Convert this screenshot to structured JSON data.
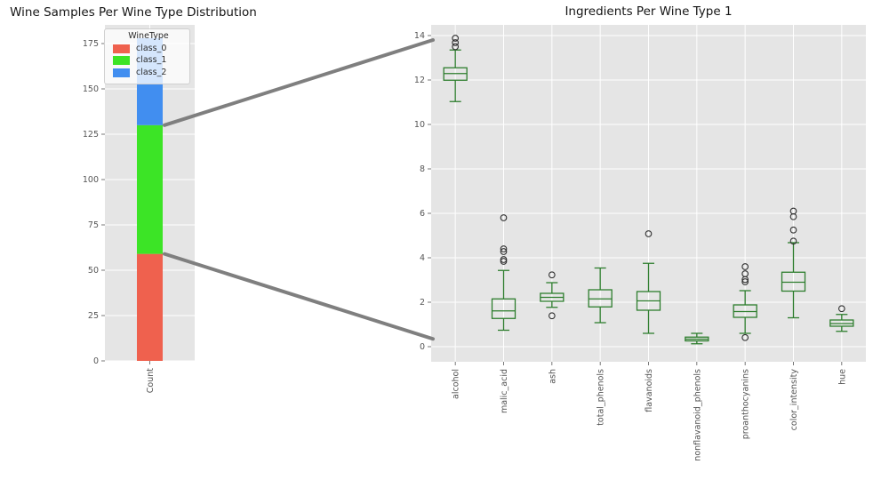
{
  "figure": {
    "background": "#ffffff",
    "axes_background": "#e5e5e5",
    "grid_color": "#ffffff",
    "tick_label_color": "#555555",
    "title_color": "#151515",
    "connector_color": "#7f7f7f",
    "flier_color": "#2f2f2f"
  },
  "chart_data": [
    {
      "type": "bar",
      "title": "Wine Samples Per Wine Type Distribution",
      "stacked": true,
      "categories": [
        "Count"
      ],
      "legend_title": "WineType",
      "legend_position": "upper center",
      "series": [
        {
          "name": "class_0",
          "color": "#ef614e",
          "values": [
            59
          ]
        },
        {
          "name": "class_1",
          "color": "#3ce426",
          "values": [
            71
          ]
        },
        {
          "name": "class_2",
          "color": "#418ef0",
          "values": [
            48
          ]
        }
      ],
      "total": 178,
      "ylim": [
        0,
        185.3
      ],
      "yticks": [
        0,
        25,
        50,
        75,
        100,
        125,
        150,
        175
      ],
      "grid": true
    },
    {
      "type": "boxplot",
      "title": "Ingredients Per Wine Type 1",
      "box_color": "#2d7d2d",
      "ylim": [
        -0.68,
        14.48
      ],
      "yticks": [
        0,
        2,
        4,
        6,
        8,
        10,
        12,
        14
      ],
      "grid": true,
      "categories": [
        "alcohol",
        "malic_acid",
        "ash",
        "total_phenols",
        "flavanoids",
        "nonflavanoid_phenols",
        "proanthocyanins",
        "color_intensity",
        "hue"
      ],
      "boxes": [
        {
          "label": "alcohol",
          "whislo": 11.03,
          "q1": 11.99,
          "med": 12.29,
          "q3": 12.55,
          "whishi": 13.35,
          "fliers": [
            13.5,
            13.68,
            13.88
          ]
        },
        {
          "label": "malic_acid",
          "whislo": 0.74,
          "q1": 1.27,
          "med": 1.61,
          "q3": 2.15,
          "whishi": 3.43,
          "fliers": [
            3.84,
            3.92,
            4.28,
            4.4,
            5.8
          ]
        },
        {
          "label": "ash",
          "whislo": 1.77,
          "q1": 2.04,
          "med": 2.22,
          "q3": 2.4,
          "whishi": 2.88,
          "fliers": [
            3.23,
            1.39
          ]
        },
        {
          "label": "total_phenols",
          "whislo": 1.08,
          "q1": 1.79,
          "med": 2.15,
          "q3": 2.56,
          "whishi": 3.54,
          "fliers": []
        },
        {
          "label": "flavanoids",
          "whislo": 0.6,
          "q1": 1.64,
          "med": 2.06,
          "q3": 2.48,
          "whishi": 3.75,
          "fliers": [
            5.08
          ]
        },
        {
          "label": "nonflavanoid_phenols",
          "whislo": 0.13,
          "q1": 0.26,
          "med": 0.34,
          "q3": 0.43,
          "whishi": 0.6,
          "fliers": []
        },
        {
          "label": "proanthocyanins",
          "whislo": 0.6,
          "q1": 1.32,
          "med": 1.58,
          "q3": 1.88,
          "whishi": 2.52,
          "fliers": [
            2.92,
            3.02,
            3.28,
            3.6,
            0.41
          ]
        },
        {
          "label": "color_intensity",
          "whislo": 1.3,
          "q1": 2.5,
          "med": 2.9,
          "q3": 3.35,
          "whishi": 4.68,
          "fliers": [
            4.75,
            5.25,
            5.85,
            6.1
          ]
        },
        {
          "label": "hue",
          "whislo": 0.69,
          "q1": 0.92,
          "med": 1.04,
          "q3": 1.2,
          "whishi": 1.45,
          "fliers": [
            1.71
          ]
        }
      ]
    }
  ],
  "zoom_lines": [
    {
      "from_count": 130,
      "to_value": 13.8
    },
    {
      "from_count": 59,
      "to_value": 0.35
    }
  ]
}
